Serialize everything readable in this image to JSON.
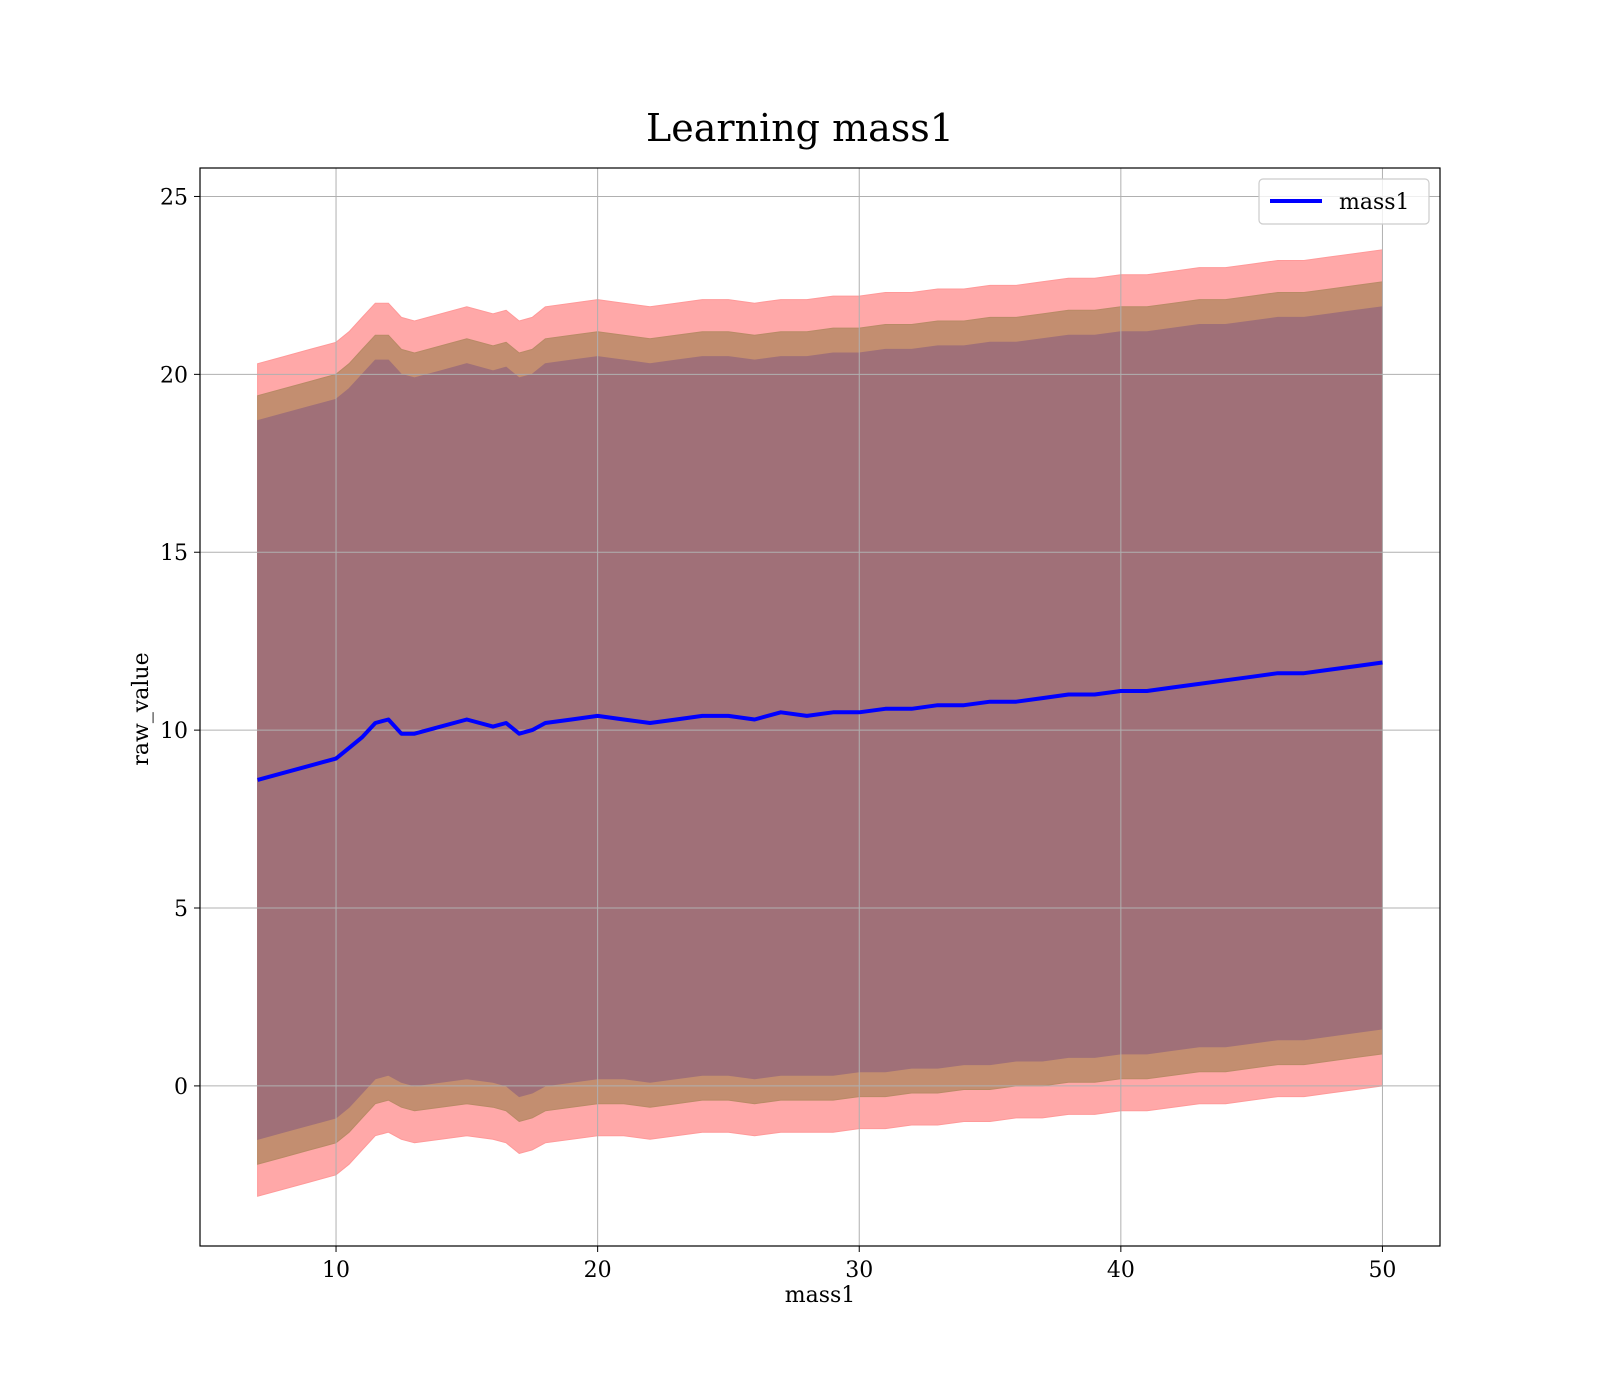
{
  "chart_data": {
    "type": "line",
    "title": "Learning mass1",
    "xlabel": "mass1",
    "ylabel": "raw_value",
    "xlim": [
      4.8,
      52.2
    ],
    "ylim": [
      -4.5,
      25.8
    ],
    "xticks": [
      10,
      20,
      30,
      40,
      50
    ],
    "yticks": [
      0,
      5,
      10,
      15,
      20,
      25
    ],
    "grid": true,
    "legend_position": "upper right",
    "x": [
      7.0,
      8.0,
      9.0,
      9.5,
      10.0,
      10.5,
      11.0,
      11.5,
      12.0,
      12.5,
      13.0,
      14.0,
      15.0,
      16.0,
      16.5,
      17.0,
      17.5,
      18.0,
      19.0,
      20.0,
      21.0,
      22.0,
      23.0,
      24.0,
      25.0,
      26.0,
      27.0,
      28.0,
      29.0,
      30.0,
      31.0,
      32.0,
      33.0,
      34.0,
      35.0,
      36.0,
      37.0,
      38.0,
      39.0,
      40.0,
      41.0,
      42.0,
      43.0,
      44.0,
      45.0,
      46.0,
      47.0,
      48.0,
      49.0,
      50.0
    ],
    "series": [
      {
        "name": "mass1",
        "color": "#0000ff",
        "values": [
          8.6,
          8.8,
          9.0,
          9.1,
          9.2,
          9.5,
          9.8,
          10.2,
          10.3,
          9.9,
          9.9,
          10.1,
          10.3,
          10.1,
          10.2,
          9.9,
          10.0,
          10.2,
          10.3,
          10.4,
          10.3,
          10.2,
          10.3,
          10.4,
          10.4,
          10.3,
          10.5,
          10.4,
          10.5,
          10.5,
          10.6,
          10.6,
          10.7,
          10.7,
          10.8,
          10.8,
          10.9,
          11.0,
          11.0,
          11.1,
          11.1,
          11.2,
          11.3,
          11.4,
          11.5,
          11.6,
          11.6,
          11.7,
          11.8,
          11.9
        ]
      }
    ],
    "bands": [
      {
        "color": "#ff9999",
        "opacity": 0.85,
        "lower": [
          -3.1,
          -2.9,
          -2.7,
          -2.6,
          -2.5,
          -2.2,
          -1.8,
          -1.4,
          -1.3,
          -1.5,
          -1.6,
          -1.5,
          -1.4,
          -1.5,
          -1.6,
          -1.9,
          -1.8,
          -1.6,
          -1.5,
          -1.4,
          -1.4,
          -1.5,
          -1.4,
          -1.3,
          -1.3,
          -1.4,
          -1.3,
          -1.3,
          -1.3,
          -1.2,
          -1.2,
          -1.1,
          -1.1,
          -1.0,
          -1.0,
          -0.9,
          -0.9,
          -0.8,
          -0.8,
          -0.7,
          -0.7,
          -0.6,
          -0.5,
          -0.5,
          -0.4,
          -0.3,
          -0.3,
          -0.2,
          -0.1,
          0.0
        ],
        "upper": [
          20.3,
          20.5,
          20.7,
          20.8,
          20.9,
          21.2,
          21.6,
          22.0,
          22.0,
          21.6,
          21.5,
          21.7,
          21.9,
          21.7,
          21.8,
          21.5,
          21.6,
          21.9,
          22.0,
          22.1,
          22.0,
          21.9,
          22.0,
          22.1,
          22.1,
          22.0,
          22.1,
          22.1,
          22.2,
          22.2,
          22.3,
          22.3,
          22.4,
          22.4,
          22.5,
          22.5,
          22.6,
          22.7,
          22.7,
          22.8,
          22.8,
          22.9,
          23.0,
          23.0,
          23.1,
          23.2,
          23.2,
          23.3,
          23.4,
          23.5
        ]
      },
      {
        "color": "#b98a66",
        "opacity": 0.85,
        "lower": [
          -2.2,
          -2.0,
          -1.8,
          -1.7,
          -1.6,
          -1.3,
          -0.9,
          -0.5,
          -0.4,
          -0.6,
          -0.7,
          -0.6,
          -0.5,
          -0.6,
          -0.7,
          -1.0,
          -0.9,
          -0.7,
          -0.6,
          -0.5,
          -0.5,
          -0.6,
          -0.5,
          -0.4,
          -0.4,
          -0.5,
          -0.4,
          -0.4,
          -0.4,
          -0.3,
          -0.3,
          -0.2,
          -0.2,
          -0.1,
          -0.1,
          0.0,
          0.0,
          0.1,
          0.1,
          0.2,
          0.2,
          0.3,
          0.4,
          0.4,
          0.5,
          0.6,
          0.6,
          0.7,
          0.8,
          0.9
        ],
        "upper": [
          19.4,
          19.6,
          19.8,
          19.9,
          20.0,
          20.3,
          20.7,
          21.1,
          21.1,
          20.7,
          20.6,
          20.8,
          21.0,
          20.8,
          20.9,
          20.6,
          20.7,
          21.0,
          21.1,
          21.2,
          21.1,
          21.0,
          21.1,
          21.2,
          21.2,
          21.1,
          21.2,
          21.2,
          21.3,
          21.3,
          21.4,
          21.4,
          21.5,
          21.5,
          21.6,
          21.6,
          21.7,
          21.8,
          21.8,
          21.9,
          21.9,
          22.0,
          22.1,
          22.1,
          22.2,
          22.3,
          22.3,
          22.4,
          22.5,
          22.6
        ]
      },
      {
        "color": "#a07078",
        "opacity": 1.0,
        "lower": [
          -1.5,
          -1.3,
          -1.1,
          -1.0,
          -0.9,
          -0.6,
          -0.2,
          0.2,
          0.3,
          0.1,
          0.0,
          0.1,
          0.2,
          0.1,
          0.0,
          -0.3,
          -0.2,
          0.0,
          0.1,
          0.2,
          0.2,
          0.1,
          0.2,
          0.3,
          0.3,
          0.2,
          0.3,
          0.3,
          0.3,
          0.4,
          0.4,
          0.5,
          0.5,
          0.6,
          0.6,
          0.7,
          0.7,
          0.8,
          0.8,
          0.9,
          0.9,
          1.0,
          1.1,
          1.1,
          1.2,
          1.3,
          1.3,
          1.4,
          1.5,
          1.6
        ],
        "upper": [
          18.7,
          18.9,
          19.1,
          19.2,
          19.3,
          19.6,
          20.0,
          20.4,
          20.4,
          20.0,
          19.9,
          20.1,
          20.3,
          20.1,
          20.2,
          19.9,
          20.0,
          20.3,
          20.4,
          20.5,
          20.4,
          20.3,
          20.4,
          20.5,
          20.5,
          20.4,
          20.5,
          20.5,
          20.6,
          20.6,
          20.7,
          20.7,
          20.8,
          20.8,
          20.9,
          20.9,
          21.0,
          21.1,
          21.1,
          21.2,
          21.2,
          21.3,
          21.4,
          21.4,
          21.5,
          21.6,
          21.6,
          21.7,
          21.8,
          21.9
        ]
      }
    ]
  }
}
